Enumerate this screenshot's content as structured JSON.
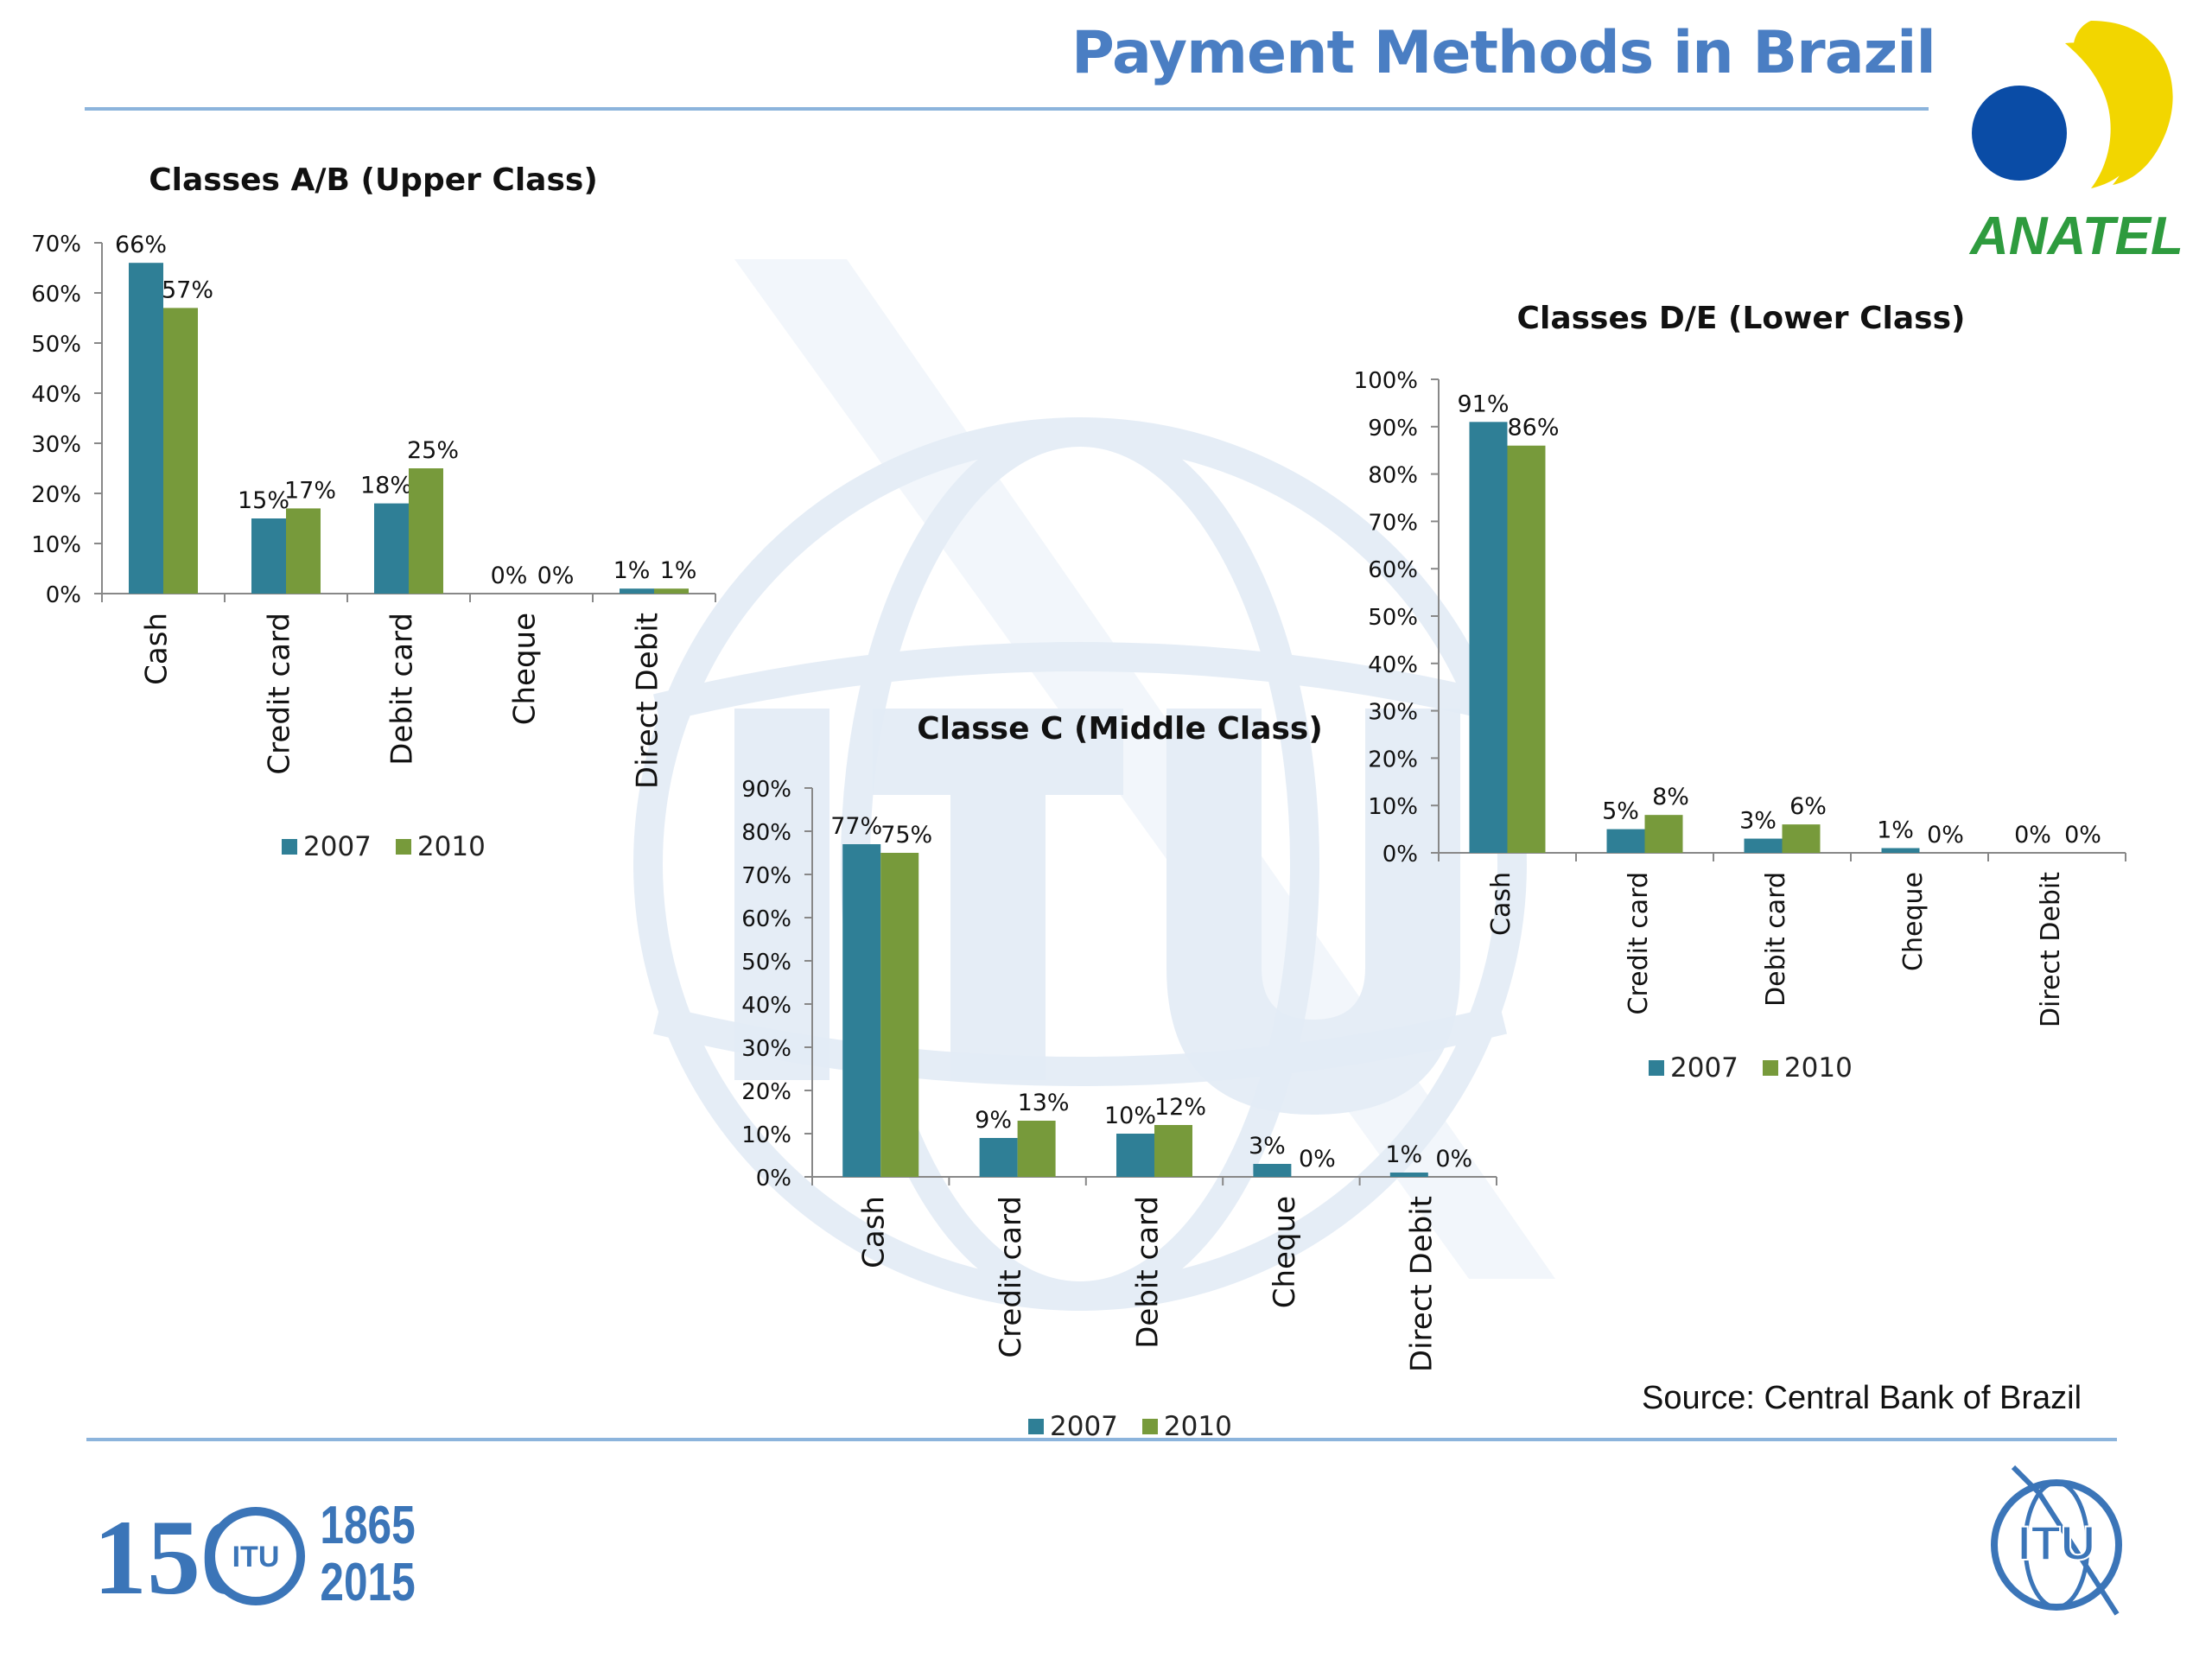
{
  "slide": {
    "title": "Payment Methods in Brazil",
    "source": "Source: Central Bank of Brazil"
  },
  "logos": {
    "anatel_text": "ANATEL",
    "itu_150_text": "150",
    "itu_years_top": "1865",
    "itu_years_bottom": "2015",
    "itu_text": "ITU"
  },
  "colors": {
    "series_2007": "#2f7f96",
    "series_2010": "#779a3b",
    "title_blue": "#4a7ec3",
    "rule": "#8cb4dc",
    "anatel_yellow": "#f2d600",
    "anatel_blue": "#0a4ca6",
    "anatel_green": "#2e9b3e",
    "itu_blue": "#3b75b8"
  },
  "legend_labels": [
    "2007",
    "2010"
  ],
  "chart_data": [
    {
      "type": "bar",
      "title": "Classes A/B (Upper Class)",
      "categories": [
        "Cash",
        "Credit card",
        "Debit card",
        "Cheque",
        "Direct Debit"
      ],
      "series": [
        {
          "name": "2007",
          "values": [
            66,
            15,
            18,
            0,
            1
          ],
          "labels": [
            "66%",
            "15%",
            "18%",
            "0%",
            "1%"
          ]
        },
        {
          "name": "2010",
          "values": [
            57,
            17,
            25,
            0,
            1
          ],
          "labels": [
            "57%",
            "17%",
            "25%",
            "0%",
            "1%"
          ]
        }
      ],
      "ylim": [
        0,
        70
      ],
      "yticks": [
        "0%",
        "10%",
        "20%",
        "30%",
        "40%",
        "50%",
        "60%",
        "70%"
      ],
      "grid": false,
      "legend": "bottom"
    },
    {
      "type": "bar",
      "title": "Classe C (Middle Class)",
      "categories": [
        "Cash",
        "Credit card",
        "Debit card",
        "Cheque",
        "Direct Debit"
      ],
      "series": [
        {
          "name": "2007",
          "values": [
            77,
            9,
            10,
            3,
            1
          ],
          "labels": [
            "77%",
            "9%",
            "10%",
            "3%",
            "1%"
          ]
        },
        {
          "name": "2010",
          "values": [
            75,
            13,
            12,
            0,
            0
          ],
          "labels": [
            "75%",
            "13%",
            "12%",
            "0%",
            "0%"
          ]
        }
      ],
      "ylim": [
        0,
        90
      ],
      "yticks": [
        "0%",
        "10%",
        "20%",
        "30%",
        "40%",
        "50%",
        "60%",
        "70%",
        "80%",
        "90%"
      ],
      "grid": false,
      "legend": "bottom"
    },
    {
      "type": "bar",
      "title": "Classes D/E (Lower Class)",
      "categories": [
        "Cash",
        "Credit card",
        "Debit card",
        "Cheque",
        "Direct Debit"
      ],
      "series": [
        {
          "name": "2007",
          "values": [
            91,
            5,
            3,
            1,
            0
          ],
          "labels": [
            "91%",
            "5%",
            "3%",
            "1%",
            "0%"
          ]
        },
        {
          "name": "2010",
          "values": [
            86,
            8,
            6,
            0,
            0
          ],
          "labels": [
            "86%",
            "8%",
            "6%",
            "0%",
            "0%"
          ]
        }
      ],
      "ylim": [
        0,
        100
      ],
      "yticks": [
        "0%",
        "10%",
        "20%",
        "30%",
        "40%",
        "50%",
        "60%",
        "70%",
        "80%",
        "90%",
        "100%"
      ],
      "grid": false,
      "legend": "bottom"
    }
  ]
}
